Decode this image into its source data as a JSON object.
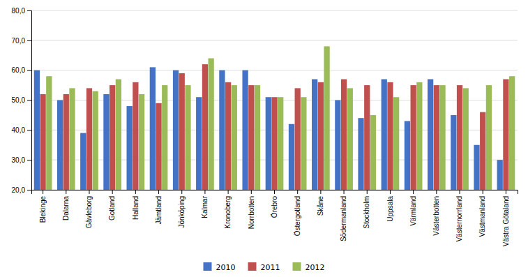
{
  "chart_data": {
    "type": "bar",
    "categories": [
      "Blekinge",
      "Dalarna",
      "Gävleborg",
      "Gotland",
      "Halland",
      "Jämtland",
      "Jönköping",
      "Kalmar",
      "Kronoberg",
      "Norrbotten",
      "Örebro",
      "Östergotland",
      "Skåne",
      "Södermanland",
      "Stockholm",
      "Uppsala",
      "Värmland",
      "Västerbotten",
      "Västernorrland",
      "Västmanland",
      "Västra Götaland"
    ],
    "series": [
      {
        "name": "2010",
        "color": "#4472C4",
        "values": [
          60,
          50,
          39,
          52,
          48,
          61,
          60,
          51,
          60,
          60,
          51,
          42,
          57,
          50,
          44,
          57,
          43,
          57,
          45,
          35,
          30
        ]
      },
      {
        "name": "2011",
        "color": "#C0504D",
        "values": [
          52,
          52,
          54,
          55,
          56,
          49,
          59,
          62,
          56,
          55,
          51,
          54,
          56,
          57,
          55,
          56,
          55,
          55,
          55,
          46,
          57
        ]
      },
      {
        "name": "2012",
        "color": "#9BBB59",
        "values": [
          58,
          54,
          53,
          57,
          52,
          55,
          55,
          64,
          55,
          55,
          51,
          51,
          68,
          54,
          45,
          51,
          56,
          55,
          54,
          55,
          58
        ]
      }
    ],
    "ylim": [
      20,
      80
    ],
    "yticks": [
      {
        "value": 20,
        "label": "20,0"
      },
      {
        "value": 30,
        "label": "30,0"
      },
      {
        "value": 40,
        "label": "40,0"
      },
      {
        "value": 50,
        "label": "50,0"
      },
      {
        "value": 60,
        "label": "60,0"
      },
      {
        "value": 70,
        "label": "70,0"
      },
      {
        "value": 80,
        "label": "80,0"
      }
    ],
    "grid": true,
    "legend": "bottom"
  }
}
